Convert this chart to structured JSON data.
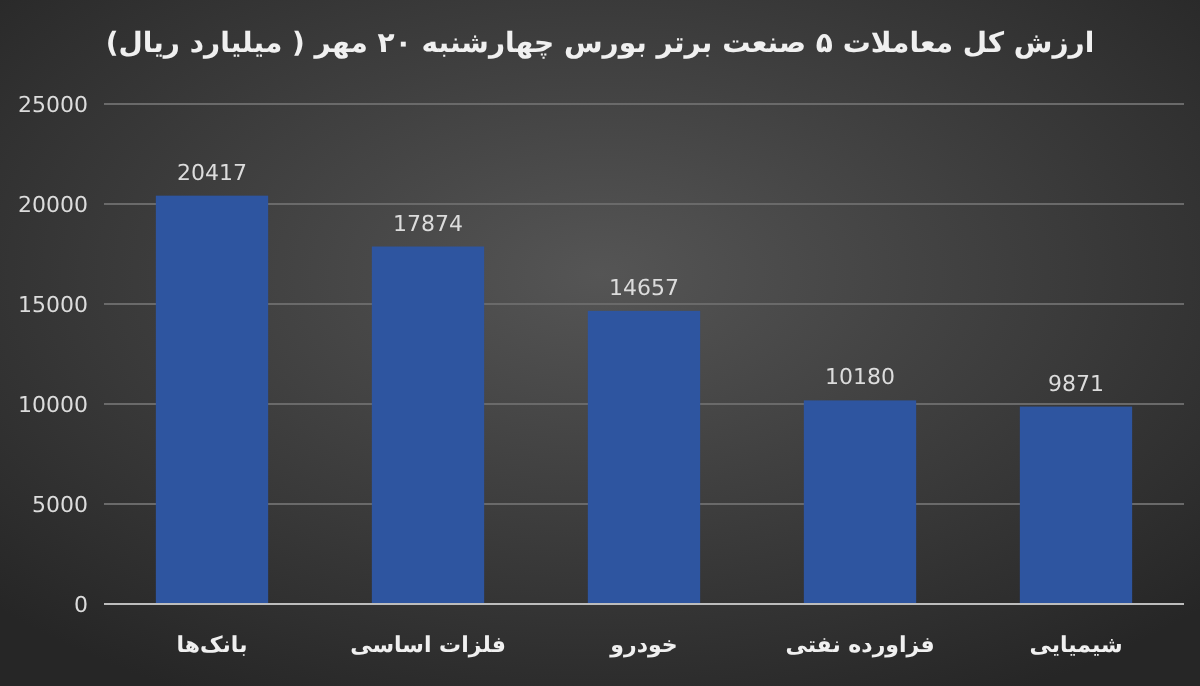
{
  "chart_data": {
    "type": "bar",
    "title": "ارزش کل معاملات ۵ صنعت برتر بورس چهارشنبه ۲۰ مهر ( میلیارد ریال)",
    "categories": [
      "بانک‌ها",
      "فلزات اساسی",
      "خودرو",
      "فزاورده نفتی",
      "شیمیایی"
    ],
    "values": [
      20417,
      17874,
      14657,
      10180,
      9871
    ],
    "color": "#2e55a0",
    "ylim": [
      0,
      25000
    ],
    "yticks": [
      0,
      5000,
      10000,
      15000,
      20000,
      25000
    ],
    "grid": "y",
    "data_labels": true
  }
}
